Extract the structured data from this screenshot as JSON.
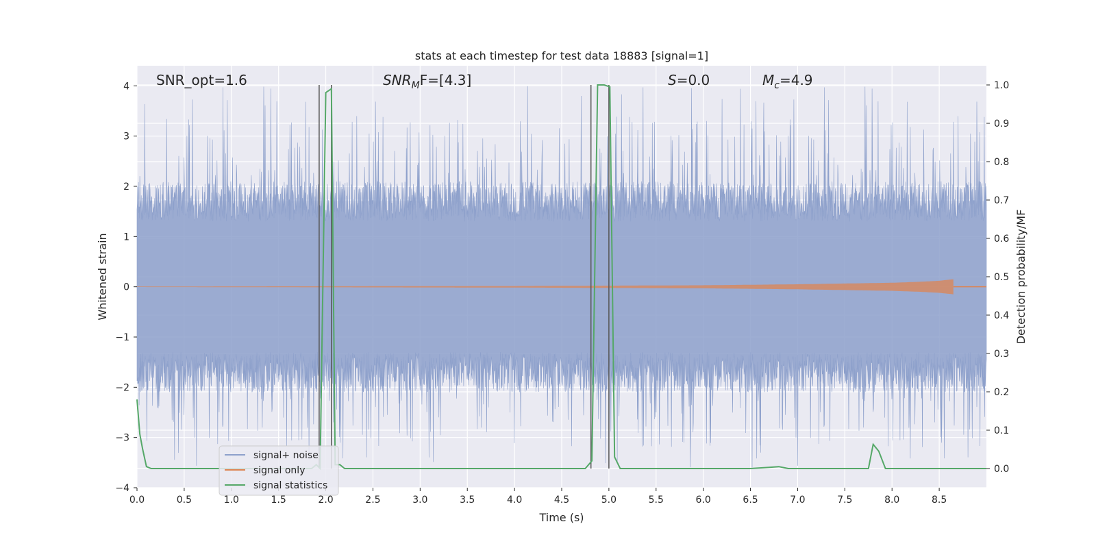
{
  "chart_data": {
    "type": "line",
    "title": "stats at each timestep for test data 18883 [signal=1]",
    "xlabel": "Time (s)",
    "ylabel_left": "Whitened strain",
    "ylabel_right": "Detection probability/MF",
    "xlim": [
      0,
      9.0
    ],
    "ylim_left": [
      -4,
      4.4
    ],
    "ylim_right": [
      -0.05,
      1.05
    ],
    "x_ticks": [
      "0.0",
      "0.5",
      "1.0",
      "1.5",
      "2.0",
      "2.5",
      "3.0",
      "3.5",
      "4.0",
      "4.5",
      "5.0",
      "5.5",
      "6.0",
      "6.5",
      "7.0",
      "7.5",
      "8.0",
      "8.5"
    ],
    "y_ticks_left": [
      "4",
      "3",
      "2",
      "1",
      "0",
      "−1",
      "−2",
      "−3",
      "−4"
    ],
    "y_ticks_right": [
      "1.0",
      "0.9",
      "0.8",
      "0.7",
      "0.6",
      "0.5",
      "0.4",
      "0.3",
      "0.2",
      "0.1",
      "0.0"
    ],
    "grid": true,
    "legend_position": "lower-left",
    "annotations": {
      "snr_opt": "SNR_opt=1.6",
      "snr_mf_main": "SNR",
      "snr_mf_sub": "M",
      "snr_mf_tail": "F=[4.3]",
      "s_main": "S",
      "s_tail": "=0.0",
      "mc_main": "M",
      "mc_sub": "c",
      "mc_tail": "=4.9"
    },
    "series": [
      {
        "name": "signal+ noise",
        "color": "#8da0cb",
        "description_values": {
          "band_upper_typical": 2.0,
          "band_lower_typical": -2.0,
          "spike_max": 4.0,
          "spike_min": -3.6
        }
      },
      {
        "name": "signal only",
        "color": "#dd8452",
        "envelope": {
          "x": [
            0,
            2,
            4,
            6,
            7,
            8,
            8.3,
            8.5,
            8.65
          ],
          "amplitude": [
            0.005,
            0.01,
            0.015,
            0.03,
            0.05,
            0.08,
            0.1,
            0.12,
            0.15
          ]
        }
      },
      {
        "name": "signal statistics",
        "color": "#55a868",
        "x": [
          0,
          0.03,
          0.06,
          0.1,
          0.15,
          0.5,
          1.0,
          1.5,
          1.85,
          1.9,
          1.94,
          2.0,
          2.06,
          2.1,
          2.15,
          2.2,
          2.5,
          3.0,
          3.5,
          4.0,
          4.5,
          4.75,
          4.82,
          4.88,
          4.95,
          5.01,
          5.06,
          5.12,
          5.5,
          6.0,
          6.5,
          6.7,
          6.8,
          6.9,
          7.0,
          7.5,
          7.75,
          7.8,
          7.86,
          7.93,
          8.0,
          8.5,
          9.0
        ],
        "values": [
          0.18,
          0.09,
          0.05,
          0.005,
          0.0,
          0.0,
          0.0,
          0.0,
          0.0,
          0.01,
          0.0,
          0.98,
          0.99,
          0.01,
          0.01,
          0.0,
          0.0,
          0.0,
          0.0,
          0.0,
          0.0,
          0.0,
          0.02,
          1.0,
          1.0,
          0.995,
          0.03,
          0.0,
          0.0,
          0.0,
          0.0,
          0.003,
          0.005,
          0.0,
          0.0,
          0.0,
          0.0,
          0.063,
          0.045,
          0.0,
          0.0,
          0.0,
          0.0
        ]
      }
    ],
    "vertical_lines": [
      1.93,
      2.06,
      4.81,
      5.0
    ]
  }
}
